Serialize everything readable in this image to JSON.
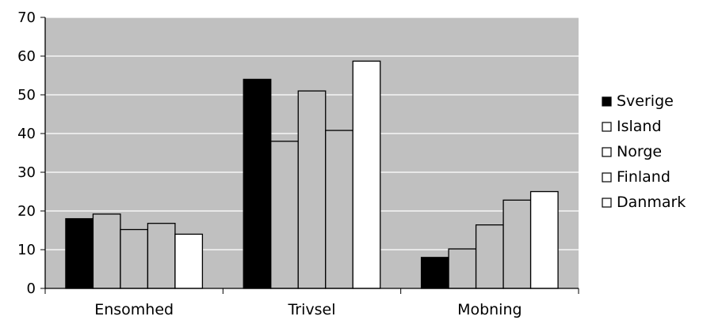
{
  "chart_data": {
    "type": "bar",
    "categories": [
      "Ensomhed",
      "Trivsel",
      "Mobning"
    ],
    "series": [
      {
        "name": "Sverige",
        "values": [
          18,
          54,
          8
        ],
        "color": "#000000"
      },
      {
        "name": "Island",
        "values": [
          19.2,
          38,
          10.2
        ],
        "color": "#c0c0c0"
      },
      {
        "name": "Norge",
        "values": [
          15.2,
          51,
          16.4
        ],
        "color": "#c0c0c0"
      },
      {
        "name": "Finland",
        "values": [
          16.8,
          40.8,
          22.8
        ],
        "color": "#c0c0c0"
      },
      {
        "name": "Danmark",
        "values": [
          14,
          58.7,
          25
        ],
        "color": "#ffffff"
      }
    ],
    "ylim": [
      0,
      70
    ],
    "yticks": [
      "0",
      "10",
      "20",
      "30",
      "40",
      "50",
      "60",
      "70"
    ],
    "plot_background": "#c0c0c0",
    "grid": true,
    "legend_position": "right"
  }
}
